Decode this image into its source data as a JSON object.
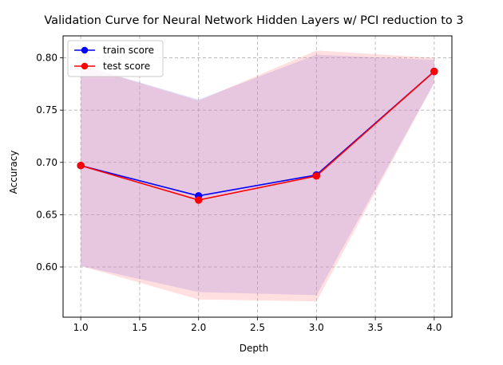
{
  "chart_data": {
    "type": "line",
    "title": "Validation Curve for Neural Network Hidden Layers w/ PCI reduction to 3",
    "xlabel": "Depth",
    "ylabel": "Accuracy",
    "xlim": [
      0.85,
      4.15
    ],
    "ylim": [
      0.552,
      0.821
    ],
    "xticks": [
      1.0,
      1.5,
      2.0,
      2.5,
      3.0,
      3.5,
      4.0
    ],
    "xtick_labels": [
      "1.0",
      "1.5",
      "2.0",
      "2.5",
      "3.0",
      "3.5",
      "4.0"
    ],
    "yticks": [
      0.6,
      0.65,
      0.7,
      0.75,
      0.8
    ],
    "ytick_labels": [
      "0.60",
      "0.65",
      "0.70",
      "0.75",
      "0.80"
    ],
    "grid": true,
    "legend_position": "upper-left",
    "x": [
      1.0,
      2.0,
      3.0,
      4.0
    ],
    "series": [
      {
        "name": "train score",
        "color": "#0000ff",
        "band_color": "#8080ff",
        "values": [
          0.697,
          0.668,
          0.688,
          0.787
        ],
        "lower": [
          0.601,
          0.576,
          0.573,
          0.776
        ],
        "upper": [
          0.793,
          0.76,
          0.803,
          0.798
        ]
      },
      {
        "name": "test score",
        "color": "#ff0000",
        "band_color": "#ff8080",
        "values": [
          0.697,
          0.664,
          0.687,
          0.787
        ],
        "lower": [
          0.601,
          0.569,
          0.567,
          0.776
        ],
        "upper": [
          0.793,
          0.759,
          0.807,
          0.8
        ]
      }
    ]
  }
}
